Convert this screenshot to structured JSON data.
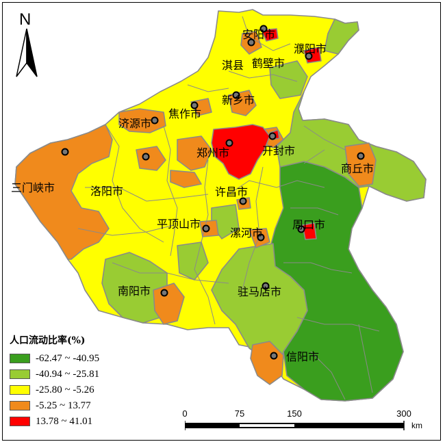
{
  "north_arrow": {
    "label": "N"
  },
  "cities": [
    {
      "name": "安阳市"
    },
    {
      "name": "濮阳市"
    },
    {
      "name": "淇县"
    },
    {
      "name": "鹤壁市"
    },
    {
      "name": "新乡市"
    },
    {
      "name": "济源市"
    },
    {
      "name": "焦作市"
    },
    {
      "name": "郑州市"
    },
    {
      "name": "开封市"
    },
    {
      "name": "商丘市"
    },
    {
      "name": "三门峡市"
    },
    {
      "name": "洛阳市"
    },
    {
      "name": "许昌市"
    },
    {
      "name": "平顶山市"
    },
    {
      "name": "漯河市"
    },
    {
      "name": "周口市"
    },
    {
      "name": "南阳市"
    },
    {
      "name": "驻马店市"
    },
    {
      "name": "信阳市"
    }
  ],
  "legend": {
    "title": "人口流动比率(%)",
    "items": [
      {
        "label": "-62.47 ~ -40.95",
        "color": "#3a9e1e"
      },
      {
        "label": "-40.94 ~ -25.81",
        "color": "#99cc33"
      },
      {
        "label": "-25.80 ~ -5.26",
        "color": "#ffff00"
      },
      {
        "label": "-5.25 ~ 13.77",
        "color": "#f08a1c"
      },
      {
        "label": "13.78 ~ 41.01",
        "color": "#ff0000"
      }
    ]
  },
  "scale_bar": {
    "ticks": [
      "0",
      "75",
      "150",
      "300"
    ],
    "unit": "km"
  }
}
